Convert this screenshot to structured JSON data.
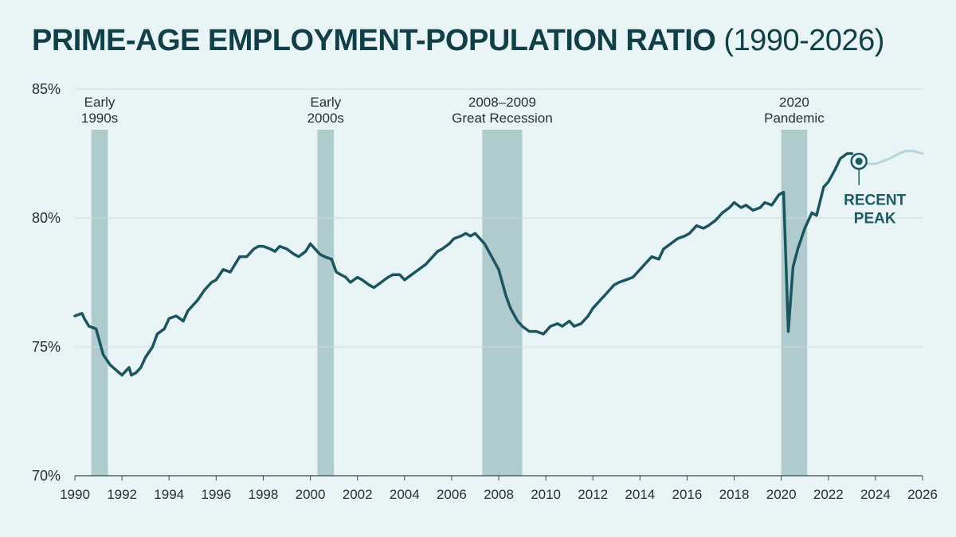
{
  "chart_data": {
    "type": "line",
    "title": "PRIME-AGE EMPLOYMENT-POPULATION RATIO",
    "title_years": "(1990-2026)",
    "xlabel": "",
    "ylabel": "",
    "xlim": [
      1990,
      2026
    ],
    "ylim": [
      70,
      85
    ],
    "x_ticks": [
      1990,
      1992,
      1994,
      1996,
      1998,
      2000,
      2002,
      2004,
      2006,
      2008,
      2010,
      2012,
      2014,
      2016,
      2018,
      2020,
      2022,
      2024,
      2026
    ],
    "x_tick_labels": [
      "1990",
      "1992",
      "1994",
      "1996",
      "1998",
      "2000",
      "2002",
      "2004",
      "2006",
      "2008",
      "2010",
      "2012",
      "2014",
      "2016",
      "2018",
      "2020",
      "2022",
      "2024",
      "2026"
    ],
    "y_ticks": [
      70,
      75,
      80,
      85
    ],
    "y_tick_labels": [
      "70%",
      "75%",
      "80%",
      "85%"
    ],
    "grid": "horizontal",
    "colors": {
      "background": "#e9f4f6",
      "line": "#1b5560",
      "projection": "#b7d6db",
      "recession": "#a9c7c9",
      "grid": "#cbdcdf",
      "title": "#113f47",
      "annotation": "#1c5a63"
    },
    "recessions": [
      {
        "start": 1990.7,
        "end": 1991.4,
        "label": [
          "Early",
          "1990s"
        ]
      },
      {
        "start": 2000.3,
        "end": 2001.0,
        "label": [
          "Early",
          "2000s"
        ]
      },
      {
        "start": 2007.3,
        "end": 2009.0,
        "label": [
          "2008–2009",
          "Great Recession"
        ]
      },
      {
        "start": 2020.0,
        "end": 2021.1,
        "label": [
          "2020",
          "Pandemic"
        ]
      }
    ],
    "series": [
      {
        "style": "solid",
        "x": [
          1990.0,
          1990.3,
          1990.4,
          1990.6,
          1990.9,
          1991.2,
          1991.5,
          1992.0,
          1992.3,
          1992.4,
          1992.6,
          1992.8,
          1993.0,
          1993.3,
          1993.5,
          1993.8,
          1994.0,
          1994.3,
          1994.6,
          1994.8,
          1995.0,
          1995.2,
          1995.5,
          1995.8,
          1996.0,
          1996.3,
          1996.6,
          1996.8,
          1997.0,
          1997.3,
          1997.6,
          1997.8,
          1998.0,
          1998.3,
          1998.5,
          1998.7,
          1999.0,
          1999.3,
          1999.5,
          1999.8,
          2000.0,
          2000.2,
          2000.4,
          2000.6,
          2000.9,
          2001.1,
          2001.3,
          2001.5,
          2001.7,
          2002.0,
          2002.2,
          2002.5,
          2002.7,
          2003.0,
          2003.3,
          2003.5,
          2003.8,
          2004.0,
          2004.3,
          2004.6,
          2004.9,
          2005.1,
          2005.4,
          2005.6,
          2005.9,
          2006.1,
          2006.4,
          2006.6,
          2006.8,
          2007.0,
          2007.2,
          2007.4,
          2007.7,
          2008.0,
          2008.3,
          2008.5,
          2008.8,
          2009.0,
          2009.3,
          2009.6,
          2009.9,
          2010.2,
          2010.5,
          2010.7,
          2011.0,
          2011.2,
          2011.5,
          2011.8,
          2012.0,
          2012.3,
          2012.6,
          2012.9,
          2013.1,
          2013.4,
          2013.7,
          2013.9,
          2014.2,
          2014.5,
          2014.8,
          2015.0,
          2015.3,
          2015.6,
          2015.9,
          2016.1,
          2016.4,
          2016.7,
          2016.9,
          2017.2,
          2017.5,
          2017.8,
          2018.0,
          2018.3,
          2018.5,
          2018.8,
          2019.1,
          2019.3,
          2019.6,
          2019.9,
          2020.1,
          2020.3,
          2020.5,
          2020.7,
          2021.0,
          2021.3,
          2021.5,
          2021.8,
          2022.0,
          2022.3,
          2022.5,
          2022.8,
          2023.0
        ],
        "y": [
          76.2,
          76.3,
          76.1,
          75.8,
          75.7,
          74.7,
          74.3,
          73.9,
          74.2,
          73.9,
          74.0,
          74.2,
          74.6,
          75.0,
          75.5,
          75.7,
          76.1,
          76.2,
          76.0,
          76.4,
          76.6,
          76.8,
          77.2,
          77.5,
          77.6,
          78.0,
          77.9,
          78.2,
          78.5,
          78.5,
          78.8,
          78.9,
          78.9,
          78.8,
          78.7,
          78.9,
          78.8,
          78.6,
          78.5,
          78.7,
          79.0,
          78.8,
          78.6,
          78.5,
          78.4,
          77.9,
          77.8,
          77.7,
          77.5,
          77.7,
          77.6,
          77.4,
          77.3,
          77.5,
          77.7,
          77.8,
          77.8,
          77.6,
          77.8,
          78.0,
          78.2,
          78.4,
          78.7,
          78.8,
          79.0,
          79.2,
          79.3,
          79.4,
          79.3,
          79.4,
          79.2,
          79.0,
          78.5,
          78.0,
          77.0,
          76.5,
          76.0,
          75.8,
          75.6,
          75.6,
          75.5,
          75.8,
          75.9,
          75.8,
          76.0,
          75.8,
          75.9,
          76.2,
          76.5,
          76.8,
          77.1,
          77.4,
          77.5,
          77.6,
          77.7,
          77.9,
          78.2,
          78.5,
          78.4,
          78.8,
          79.0,
          79.2,
          79.3,
          79.4,
          79.7,
          79.6,
          79.7,
          79.9,
          80.2,
          80.4,
          80.6,
          80.4,
          80.5,
          80.3,
          80.4,
          80.6,
          80.5,
          80.9,
          81.0,
          75.6,
          78.1,
          78.8,
          79.6,
          80.2,
          80.1,
          81.2,
          81.4,
          81.9,
          82.3,
          82.5,
          82.5
        ]
      },
      {
        "style": "faded",
        "x": [
          2023.3,
          2023.6,
          2024.0,
          2024.3,
          2024.6,
          2025.0,
          2025.3,
          2025.6,
          2026.0
        ],
        "y": [
          82.2,
          82.1,
          82.1,
          82.2,
          82.3,
          82.5,
          82.6,
          82.6,
          82.5
        ]
      }
    ],
    "annotations": [
      {
        "x": 2023.3,
        "y": 82.2,
        "label": [
          "RECENT",
          "PEAK"
        ]
      }
    ]
  }
}
